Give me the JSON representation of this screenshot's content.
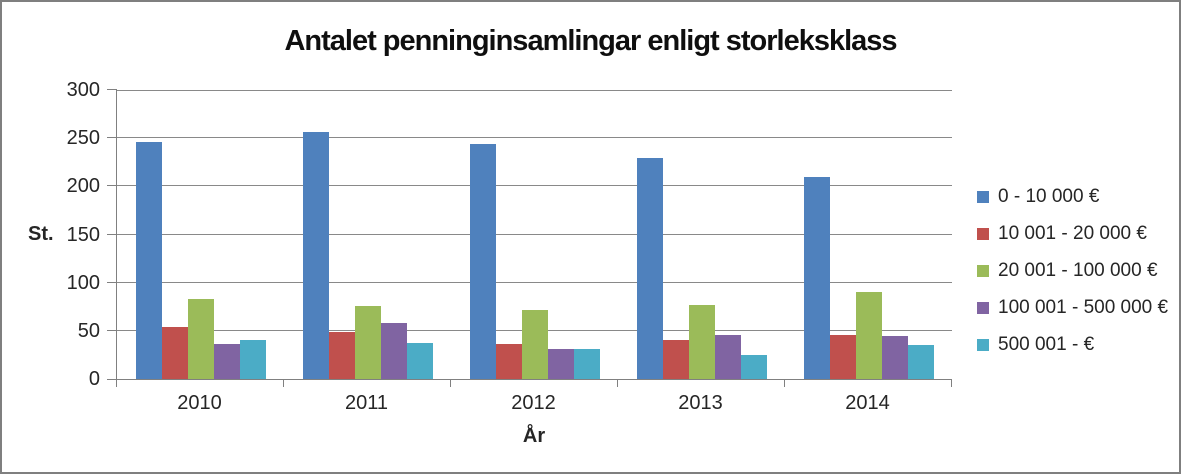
{
  "frame": {
    "background": "#ffffff",
    "border_color": "#7f7f7f"
  },
  "chart_data": {
    "type": "bar",
    "title": "Antalet penninginsamlingar enligt storleksklass",
    "xlabel": "År",
    "ylabel": "St.",
    "categories": [
      "2010",
      "2011",
      "2012",
      "2013",
      "2014"
    ],
    "series": [
      {
        "name": "0 - 10 000 €",
        "color": "#4F81BD",
        "values": [
          246,
          256,
          244,
          229,
          210
        ]
      },
      {
        "name": "10 001 - 20 000 €",
        "color": "#C0504D",
        "values": [
          54,
          49,
          36,
          40,
          46
        ]
      },
      {
        "name": "20 001 - 100 000 €",
        "color": "#9BBB59",
        "values": [
          83,
          76,
          72,
          77,
          90
        ]
      },
      {
        "name": "100 001 - 500 000 €",
        "color": "#8064A2",
        "values": [
          36,
          58,
          31,
          46,
          45
        ]
      },
      {
        "name": "500 001 - €",
        "color": "#4BACC6",
        "values": [
          41,
          37,
          31,
          25,
          35
        ]
      }
    ],
    "ylim": [
      0,
      300
    ],
    "ytick_step": 50,
    "yticks": [
      "300",
      "250",
      "200",
      "150",
      "100",
      "50",
      "0"
    ],
    "grid": true,
    "legend_position": "right",
    "axis_color": "#808080",
    "gridline_color": "#898989"
  }
}
